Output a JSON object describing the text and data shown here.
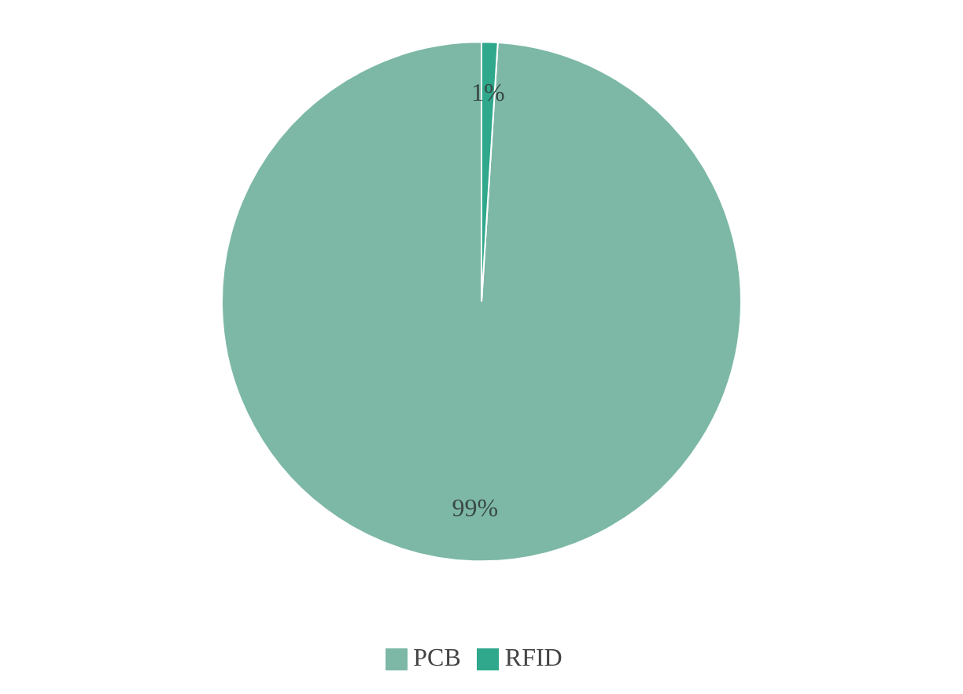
{
  "chart_data": {
    "type": "pie",
    "categories": [
      "PCB",
      "RFID"
    ],
    "values": [
      99,
      1
    ],
    "colors": [
      "#7db8a6",
      "#2fa88c"
    ],
    "value_labels": [
      "99%",
      "1%"
    ],
    "legend": "bottom"
  }
}
